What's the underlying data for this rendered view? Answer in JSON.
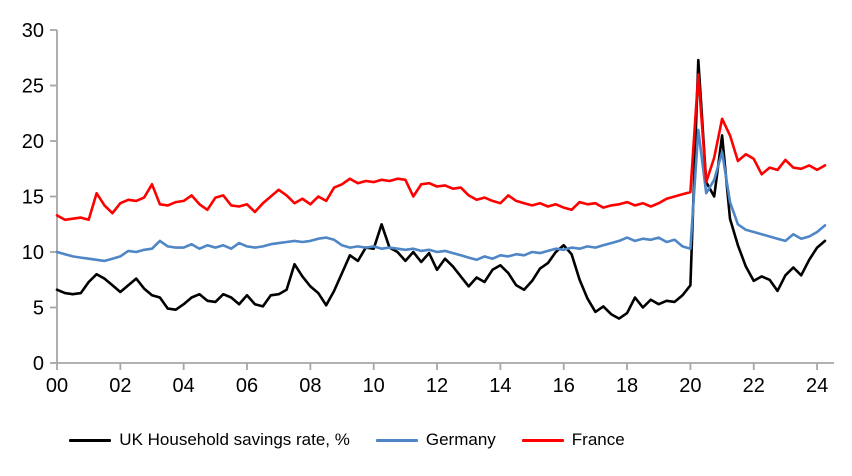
{
  "legend": {
    "items": [
      {
        "id": "uk",
        "label": "UK Household savings rate, %",
        "color": "#000000"
      },
      {
        "id": "germany",
        "label": "Germany",
        "color": "#4F86C6"
      },
      {
        "id": "france",
        "label": "France",
        "color": "#FF0000"
      }
    ]
  },
  "chart_data": {
    "type": "line",
    "title": "",
    "xlabel": "",
    "ylabel": "",
    "x_unit": "quarterly, 2000Q1 - 2024Q2",
    "ylim": [
      0,
      30
    ],
    "yticks": [
      0,
      5,
      10,
      15,
      20,
      25,
      30
    ],
    "xticks": {
      "positions_quarter_index": [
        0,
        8,
        16,
        24,
        32,
        40,
        48,
        56,
        64,
        72,
        80,
        88,
        96
      ],
      "labels": [
        "00",
        "02",
        "04",
        "06",
        "08",
        "10",
        "12",
        "14",
        "16",
        "18",
        "20",
        "22",
        "24"
      ]
    },
    "grid": false,
    "legend_position": "bottom",
    "axis_color": "#A6A6A6",
    "line_width": 2.6,
    "series": [
      {
        "id": "uk",
        "name": "UK Household savings rate, %",
        "color": "#000000",
        "values": [
          6.6,
          6.3,
          6.2,
          6.3,
          7.3,
          8.0,
          7.6,
          7.0,
          6.4,
          7.0,
          7.6,
          6.7,
          6.1,
          5.9,
          4.9,
          4.8,
          5.3,
          5.9,
          6.2,
          5.6,
          5.5,
          6.2,
          5.9,
          5.3,
          6.1,
          5.3,
          5.1,
          6.1,
          6.2,
          6.6,
          8.9,
          7.8,
          6.9,
          6.3,
          5.2,
          6.5,
          8.1,
          9.7,
          9.2,
          10.4,
          10.3,
          12.5,
          10.4,
          10.0,
          9.2,
          10.0,
          9.1,
          9.9,
          8.4,
          9.4,
          8.7,
          7.8,
          6.9,
          7.7,
          7.3,
          8.4,
          8.8,
          8.1,
          7.0,
          6.6,
          7.4,
          8.5,
          9.0,
          10.0,
          10.6,
          9.8,
          7.5,
          5.8,
          4.6,
          5.1,
          4.4,
          4.0,
          4.5,
          5.9,
          5.0,
          5.7,
          5.3,
          5.6,
          5.5,
          6.1,
          7.0,
          27.3,
          16.3,
          15.0,
          20.5,
          13.0,
          10.6,
          8.7,
          7.4,
          7.8,
          7.5,
          6.5,
          7.9,
          8.6,
          7.9,
          9.3,
          10.4,
          11.0
        ]
      },
      {
        "id": "germany",
        "name": "Germany",
        "color": "#4F86C6",
        "values": [
          10.0,
          9.8,
          9.6,
          9.5,
          9.4,
          9.3,
          9.2,
          9.4,
          9.6,
          10.1,
          10.0,
          10.2,
          10.3,
          11.0,
          10.5,
          10.4,
          10.4,
          10.7,
          10.3,
          10.6,
          10.4,
          10.6,
          10.3,
          10.8,
          10.5,
          10.4,
          10.5,
          10.7,
          10.8,
          10.9,
          11.0,
          10.9,
          11.0,
          11.2,
          11.3,
          11.1,
          10.6,
          10.4,
          10.5,
          10.4,
          10.5,
          10.3,
          10.4,
          10.3,
          10.2,
          10.3,
          10.1,
          10.2,
          10.0,
          10.1,
          9.9,
          9.7,
          9.5,
          9.3,
          9.6,
          9.4,
          9.7,
          9.6,
          9.8,
          9.7,
          10.0,
          9.9,
          10.1,
          10.3,
          10.2,
          10.4,
          10.3,
          10.5,
          10.4,
          10.6,
          10.8,
          11.0,
          11.3,
          11.0,
          11.2,
          11.1,
          11.3,
          10.9,
          11.1,
          10.5,
          10.3,
          21.0,
          15.3,
          16.5,
          19.0,
          14.5,
          12.5,
          12.0,
          11.8,
          11.6,
          11.4,
          11.2,
          11.0,
          11.6,
          11.2,
          11.4,
          11.8,
          12.4
        ]
      },
      {
        "id": "france",
        "name": "France",
        "color": "#FF0000",
        "values": [
          13.3,
          12.9,
          13.0,
          13.1,
          12.9,
          15.3,
          14.2,
          13.5,
          14.4,
          14.7,
          14.6,
          14.9,
          16.1,
          14.3,
          14.2,
          14.5,
          14.6,
          15.1,
          14.3,
          13.8,
          14.9,
          15.1,
          14.2,
          14.1,
          14.3,
          13.6,
          14.4,
          15.0,
          15.6,
          15.1,
          14.4,
          14.8,
          14.3,
          15.0,
          14.6,
          15.8,
          16.1,
          16.6,
          16.2,
          16.4,
          16.3,
          16.5,
          16.4,
          16.6,
          16.5,
          15.0,
          16.1,
          16.2,
          15.9,
          16.0,
          15.7,
          15.8,
          15.1,
          14.7,
          14.9,
          14.6,
          14.4,
          15.1,
          14.6,
          14.4,
          14.2,
          14.4,
          14.1,
          14.3,
          14.0,
          13.8,
          14.5,
          14.3,
          14.4,
          14.0,
          14.2,
          14.3,
          14.5,
          14.2,
          14.4,
          14.1,
          14.4,
          14.8,
          15.0,
          15.2,
          15.4,
          26.0,
          16.3,
          18.5,
          22.0,
          20.5,
          18.2,
          18.8,
          18.4,
          17.0,
          17.6,
          17.4,
          18.3,
          17.6,
          17.5,
          17.8,
          17.4,
          17.8
        ]
      }
    ]
  }
}
